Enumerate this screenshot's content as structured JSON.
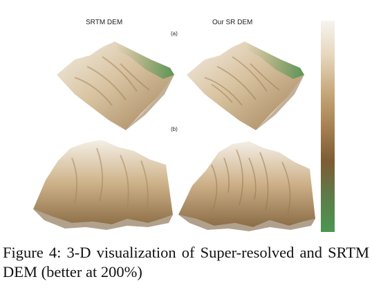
{
  "figure": {
    "column_titles": [
      "SRTM DEM",
      "Our SR DEM"
    ],
    "panel_labels": [
      "(a)",
      "(b)"
    ],
    "colorbar": {
      "colors": [
        "#f6f4ef",
        "#e6d6bc",
        "#c7a97c",
        "#a68252",
        "#7d5c33",
        "#5e7c4a",
        "#4c9653"
      ]
    },
    "terrain_colors": {
      "light": "#f1ebe0",
      "mid": "#c9ad83",
      "dark": "#9c7d50",
      "shadow": "#8a6c43",
      "green": "#5d9a5a"
    }
  },
  "caption": "Figure 4:  3-D visualization of Super-resolved and SRTM DEM (better at 200%)"
}
